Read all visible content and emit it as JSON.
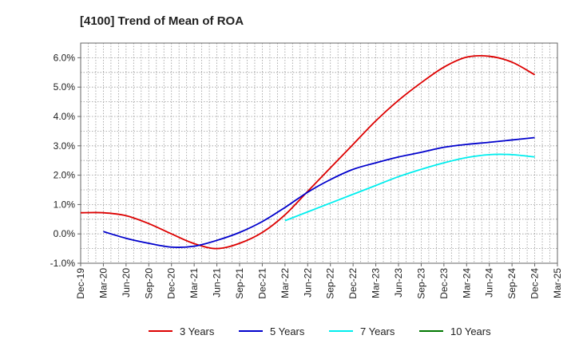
{
  "chart_data": {
    "type": "line",
    "title": "[4100]  Trend of Mean of ROA",
    "xlabel": "",
    "ylabel": "",
    "ylim": [
      -1.0,
      6.5
    ],
    "y_ticks": [
      -1.0,
      0.0,
      1.0,
      2.0,
      3.0,
      4.0,
      5.0,
      6.0
    ],
    "y_tick_labels": [
      "-1.0%",
      "0.0%",
      "1.0%",
      "2.0%",
      "3.0%",
      "4.0%",
      "5.0%",
      "6.0%"
    ],
    "x_tick_labels": [
      "Dec-19",
      "Mar-20",
      "Jun-20",
      "Sep-20",
      "Dec-20",
      "Mar-21",
      "Jun-21",
      "Sep-21",
      "Dec-21",
      "Mar-22",
      "Jun-22",
      "Sep-22",
      "Dec-22",
      "Mar-23",
      "Jun-23",
      "Sep-23",
      "Dec-23",
      "Mar-24",
      "Jun-24",
      "Sep-24",
      "Dec-24",
      "Mar-25"
    ],
    "grid": true,
    "legend_position": "bottom",
    "series": [
      {
        "name": "3 Years",
        "color": "#dd0000",
        "start_index": 0,
        "values": [
          0.72,
          0.72,
          0.62,
          0.35,
          0.0,
          -0.33,
          -0.5,
          -0.32,
          0.05,
          0.65,
          1.45,
          2.25,
          3.05,
          3.85,
          4.55,
          5.15,
          5.68,
          6.02,
          6.05,
          5.85,
          5.42
        ]
      },
      {
        "name": "5 Years",
        "color": "#0000cc",
        "start_index": 1,
        "values": [
          0.08,
          -0.15,
          -0.32,
          -0.45,
          -0.42,
          -0.22,
          0.05,
          0.42,
          0.9,
          1.42,
          1.85,
          2.2,
          2.42,
          2.62,
          2.78,
          2.95,
          3.05,
          3.12,
          3.2,
          3.28
        ]
      },
      {
        "name": "7 Years",
        "color": "#00eeee",
        "start_index": 9,
        "values": [
          0.45,
          0.75,
          1.05,
          1.35,
          1.65,
          1.95,
          2.2,
          2.42,
          2.6,
          2.7,
          2.7,
          2.62
        ]
      },
      {
        "name": "10 Years",
        "color": "#007700",
        "start_index": 0,
        "values": []
      }
    ]
  }
}
